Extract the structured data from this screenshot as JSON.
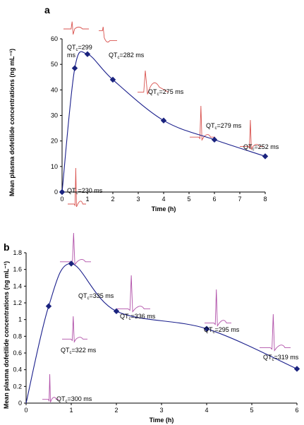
{
  "chart_data": [
    {
      "panel": "a",
      "type": "line",
      "xlabel": "Time (h)",
      "ylabel": "Mean plasma dofetilide concentrations (ng mL⁻¹)",
      "xlim": [
        0,
        8
      ],
      "ylim": [
        0,
        60
      ],
      "xticks": [
        "0",
        "1",
        "2",
        "3",
        "4",
        "5",
        "6",
        "7",
        "8"
      ],
      "yticks": [
        "0",
        "10",
        "20",
        "30",
        "40",
        "50",
        "60"
      ],
      "grid": false,
      "marker": "diamond",
      "line_color": "#1a1f8c",
      "marker_color": "#1a237e",
      "ecg_color": "#d9534f",
      "x": [
        0,
        0.5,
        1,
        2,
        4,
        6,
        8
      ],
      "y": [
        0,
        48.5,
        54,
        44,
        28,
        20.5,
        14
      ],
      "annotations": [
        {
          "label_main": "QT",
          "label_sub": "c",
          "label_tail": "=230 ms"
        },
        {
          "label_main": "QT",
          "label_sub": "c",
          "label_tail": "=299",
          "label_line2": "ms"
        },
        {
          "label_main": "QT",
          "label_sub": "c",
          "label_tail": "=282 ms"
        },
        {
          "label_main": "QT",
          "label_sub": "c",
          "label_tail": "=275 ms"
        },
        {
          "label_main": "QT",
          "label_sub": "c",
          "label_tail": "=279 ms"
        },
        {
          "label_main": "QT",
          "label_sub": "c",
          "label_tail": "=252 ms"
        }
      ]
    },
    {
      "panel": "b",
      "type": "line",
      "xlabel": "Time (h)",
      "ylabel": "Mean plasma dofetilide concentrations (ng mL⁻¹)",
      "xlim": [
        0,
        6
      ],
      "ylim": [
        0,
        1.8
      ],
      "xticks": [
        "0",
        "1",
        "2",
        "3",
        "4",
        "5",
        "6"
      ],
      "yticks": [
        "0",
        "0.2",
        "0.4",
        "0.6",
        "0.8",
        "1",
        "1.2",
        "1.4",
        "1.6",
        "1.8"
      ],
      "grid": false,
      "marker": "diamond",
      "line_color": "#1a1f8c",
      "marker_color": "#1a237e",
      "ecg_color": "#b04fa8",
      "x": [
        0.5,
        1,
        2,
        4,
        6
      ],
      "y": [
        1.16,
        1.67,
        1.1,
        0.89,
        0.41
      ],
      "annotations": [
        {
          "label_main": "QT",
          "label_sub": "c",
          "label_tail": "=300 ms"
        },
        {
          "label_main": "QT",
          "label_sub": "c",
          "label_tail": "=322 ms"
        },
        {
          "label_main": "QT",
          "label_sub": "c",
          "label_tail": "=335 ms"
        },
        {
          "label_main": "QT",
          "label_sub": "c",
          "label_tail": "=336 ms"
        },
        {
          "label_main": "QT",
          "label_sub": "c",
          "label_tail": "=295 ms"
        },
        {
          "label_main": "QT",
          "label_sub": "c",
          "label_tail": "=319 ms"
        }
      ]
    }
  ]
}
